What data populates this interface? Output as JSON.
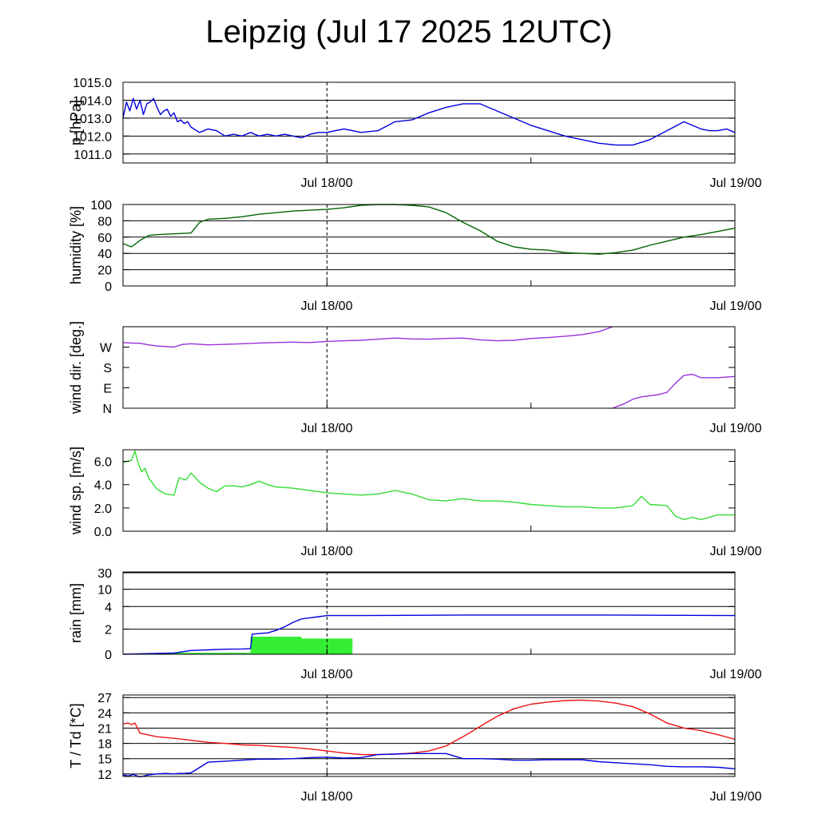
{
  "title": "Leipzig (Jul 17 2025 12UTC)",
  "x_ticks": [
    "Jul 18/00",
    "Jul 19/00"
  ],
  "chart_data": [
    {
      "type": "line",
      "ylabel": "p [hPa]",
      "ylim": [
        1010.5,
        1015.0
      ],
      "grid": true,
      "yticks": [
        1011.0,
        1012.0,
        1013.0,
        1014.0,
        1015.0
      ],
      "ytick_labels": [
        "1011.0",
        "1012.0",
        "1013.0",
        "1014.0",
        "1015.0"
      ],
      "xlim": [
        0,
        36
      ],
      "series": [
        {
          "color": "#0000dd",
          "x": [
            0,
            0.2,
            0.4,
            0.6,
            0.8,
            1.0,
            1.2,
            1.4,
            1.6,
            1.8,
            2.0,
            2.2,
            2.4,
            2.6,
            2.8,
            3.0,
            3.2,
            3.4,
            3.6,
            3.8,
            4.0,
            4.5,
            5.0,
            5.5,
            6.0,
            6.5,
            7.0,
            7.5,
            8.0,
            8.5,
            9.0,
            9.5,
            10.0,
            10.5,
            11.0,
            11.5,
            12.0,
            12.5,
            13.0,
            13.5,
            14.0,
            15.0,
            16.0,
            17.0,
            18.0,
            19.0,
            20.0,
            21.0,
            22.0,
            23.0,
            24.0,
            25.0,
            26.0,
            27.0,
            28.0,
            29.0,
            30.0,
            31.0,
            32.0,
            33.0,
            34.0,
            34.5,
            35.0,
            35.5,
            36.0
          ],
          "y": [
            1013.0,
            1013.9,
            1013.4,
            1014.1,
            1013.5,
            1014.0,
            1013.2,
            1013.8,
            1013.9,
            1014.1,
            1013.6,
            1013.2,
            1013.4,
            1013.5,
            1013.1,
            1013.3,
            1012.8,
            1012.9,
            1012.7,
            1012.8,
            1012.5,
            1012.2,
            1012.4,
            1012.3,
            1012.0,
            1012.1,
            1012.0,
            1012.2,
            1012.0,
            1012.1,
            1012.0,
            1012.1,
            1012.0,
            1011.9,
            1012.1,
            1012.2,
            1012.2,
            1012.3,
            1012.4,
            1012.3,
            1012.2,
            1012.3,
            1012.8,
            1012.9,
            1013.3,
            1013.6,
            1013.8,
            1013.8,
            1013.4,
            1013.0,
            1012.6,
            1012.3,
            1012.0,
            1011.8,
            1011.6,
            1011.5,
            1011.5,
            1011.8,
            1012.3,
            1012.8,
            1012.4,
            1012.3,
            1012.3,
            1012.4,
            1012.2
          ]
        }
      ]
    },
    {
      "type": "line",
      "ylabel": "humidity [%]",
      "ylim": [
        0,
        100
      ],
      "grid": true,
      "yticks": [
        0,
        20,
        40,
        60,
        80,
        100
      ],
      "ytick_labels": [
        "0",
        "20",
        "40",
        "60",
        "80",
        "100"
      ],
      "xlim": [
        0,
        36
      ],
      "series": [
        {
          "color": "#006400",
          "x": [
            0,
            0.5,
            1.0,
            1.5,
            2.0,
            3.0,
            4.0,
            4.5,
            5.0,
            6.0,
            7.0,
            8.0,
            9.0,
            10.0,
            11.0,
            12.0,
            13.0,
            14.0,
            15.0,
            16.0,
            17.0,
            18.0,
            19.0,
            20.0,
            21.0,
            22.0,
            23.0,
            24.0,
            25.0,
            26.0,
            27.0,
            28.0,
            29.0,
            30.0,
            31.0,
            32.0,
            33.0,
            34.0,
            35.0,
            36.0
          ],
          "y": [
            52,
            48,
            56,
            62,
            63,
            64,
            65,
            78,
            82,
            83,
            85,
            88,
            90,
            92,
            93,
            94,
            96,
            99,
            100,
            100,
            99,
            97,
            90,
            78,
            68,
            55,
            48,
            45,
            44,
            41,
            40,
            39,
            41,
            44,
            50,
            55,
            60,
            63,
            67,
            71
          ]
        }
      ]
    },
    {
      "type": "line",
      "ylabel": "wind dir. [deg.]",
      "ylim": [
        0,
        360
      ],
      "grid": false,
      "yticks": [
        0,
        90,
        180,
        270
      ],
      "ytick_labels": [
        "N",
        "E",
        "S",
        "W"
      ],
      "xlim": [
        0,
        36
      ],
      "series": [
        {
          "color": "#9b30d9",
          "x": [
            0,
            0.5,
            1.0,
            1.5,
            2.0,
            3.0,
            3.5,
            4.0,
            5.0,
            6.0,
            7.0,
            8.0,
            9.0,
            10.0,
            11.0,
            12.0,
            13.0,
            14.0,
            15.0,
            16.0,
            17.0,
            18.0,
            19.0,
            20.0,
            21.0,
            22.0,
            23.0,
            24.0,
            25.0,
            26.0,
            27.0,
            28.0,
            28.8
          ],
          "y": [
            290,
            288,
            287,
            280,
            275,
            270,
            282,
            285,
            280,
            282,
            285,
            288,
            290,
            292,
            290,
            295,
            298,
            300,
            305,
            310,
            306,
            305,
            308,
            310,
            302,
            298,
            300,
            308,
            312,
            318,
            325,
            338,
            360
          ]
        },
        {
          "color": "#9b30d9",
          "x": [
            28.8,
            29.5,
            30.0,
            30.5,
            31.0,
            31.5,
            32.0,
            32.5,
            33.0,
            33.5,
            34.0,
            35.0,
            36.0
          ],
          "y": [
            0,
            20,
            40,
            50,
            55,
            60,
            70,
            110,
            145,
            150,
            135,
            135,
            140
          ]
        }
      ]
    },
    {
      "type": "line",
      "ylabel": "wind sp. [m/s]",
      "ylim": [
        0,
        7
      ],
      "grid": false,
      "yticks": [
        0,
        2,
        4,
        6
      ],
      "ytick_labels": [
        "0.0",
        "2.0",
        "4.0",
        "6.0"
      ],
      "xlim": [
        0,
        36
      ],
      "series": [
        {
          "color": "#33dd33",
          "x": [
            0,
            0.5,
            0.7,
            0.9,
            1.1,
            1.3,
            1.5,
            1.7,
            2.0,
            2.5,
            3.0,
            3.3,
            3.7,
            4.0,
            4.5,
            5.0,
            5.5,
            6.0,
            6.5,
            7.0,
            7.5,
            8.0,
            8.5,
            9.0,
            10.0,
            11.0,
            12.0,
            13.0,
            14.0,
            15.0,
            16.0,
            17.0,
            18.0,
            19.0,
            20.0,
            21.0,
            22.0,
            23.0,
            24.0,
            25.0,
            26.0,
            27.0,
            28.0,
            29.0,
            30.0,
            30.5,
            31.0,
            32.0,
            32.5,
            33.0,
            33.5,
            34.0,
            35.0,
            36.0
          ],
          "y": [
            5.9,
            6.1,
            6.9,
            5.8,
            5.1,
            5.4,
            4.6,
            4.2,
            3.6,
            3.2,
            3.1,
            4.6,
            4.4,
            5.0,
            4.2,
            3.7,
            3.4,
            3.9,
            3.9,
            3.8,
            4.0,
            4.3,
            4.0,
            3.8,
            3.7,
            3.5,
            3.3,
            3.2,
            3.1,
            3.2,
            3.5,
            3.2,
            2.7,
            2.6,
            2.8,
            2.6,
            2.6,
            2.5,
            2.3,
            2.2,
            2.1,
            2.1,
            2.0,
            2.0,
            2.2,
            3.0,
            2.3,
            2.2,
            1.3,
            1.0,
            1.2,
            1.0,
            1.4,
            1.4
          ]
        }
      ]
    },
    {
      "type": "bar+line",
      "ylabel": "rain [mm]",
      "ylim": [
        0,
        30
      ],
      "scale": "nonlinear",
      "grid": true,
      "yticks": [
        0,
        2,
        4,
        10,
        30
      ],
      "ytick_labels": [
        "0",
        "2",
        "4",
        "10",
        "30"
      ],
      "xlim": [
        0,
        36
      ],
      "bars": {
        "color": "#33ee33",
        "segments": [
          {
            "x0": 1.5,
            "x1": 3.0,
            "value": 0.08
          },
          {
            "x0": 3.0,
            "x1": 7.5,
            "value": 0.12
          },
          {
            "x0": 7.5,
            "x1": 10.5,
            "value": 1.4
          },
          {
            "x0": 10.5,
            "x1": 13.5,
            "value": 1.25
          }
        ]
      },
      "series": [
        {
          "color": "#0000dd",
          "x": [
            0,
            1.5,
            3.0,
            3.5,
            4.0,
            5.0,
            6.0,
            7.0,
            7.5,
            7.6,
            8.0,
            8.5,
            9.0,
            9.5,
            10.0,
            10.5,
            11.0,
            11.5,
            12.0,
            14.0,
            20.0,
            28.0,
            36.0
          ],
          "y": [
            0,
            0.05,
            0.1,
            0.2,
            0.3,
            0.35,
            0.4,
            0.42,
            0.45,
            1.6,
            1.65,
            1.7,
            1.9,
            2.2,
            2.6,
            2.9,
            3.0,
            3.1,
            3.2,
            3.2,
            3.25,
            3.25,
            3.2
          ]
        }
      ]
    },
    {
      "type": "line",
      "ylabel": "T / Td [*C]",
      "ylim": [
        11.5,
        27.5
      ],
      "grid": true,
      "yticks": [
        12,
        15,
        18,
        21,
        24,
        27
      ],
      "ytick_labels": [
        "12",
        "15",
        "18",
        "21",
        "24",
        "27"
      ],
      "xlim": [
        0,
        36
      ],
      "series": [
        {
          "color": "#ee1111",
          "x": [
            0,
            0.3,
            0.5,
            0.7,
            1.0,
            2.0,
            3.0,
            4.0,
            5.0,
            6.0,
            7.0,
            8.0,
            9.0,
            10.0,
            11.0,
            12.0,
            13.0,
            14.0,
            15.0,
            16.0,
            17.0,
            18.0,
            19.0,
            20.0,
            21.0,
            22.0,
            23.0,
            24.0,
            25.0,
            26.0,
            27.0,
            28.0,
            29.0,
            30.0,
            31.0,
            32.0,
            33.0,
            34.0,
            35.0,
            36.0
          ],
          "y": [
            21.8,
            22.0,
            21.7,
            22.0,
            20.0,
            19.3,
            19.0,
            18.6,
            18.2,
            18.0,
            17.7,
            17.6,
            17.4,
            17.2,
            16.9,
            16.5,
            16.1,
            15.8,
            15.8,
            15.9,
            16.1,
            16.5,
            17.5,
            19.3,
            21.3,
            23.3,
            24.8,
            25.7,
            26.1,
            26.4,
            26.5,
            26.3,
            25.9,
            25.2,
            23.8,
            22.0,
            21.0,
            20.5,
            19.7,
            18.8
          ]
        },
        {
          "color": "#0000dd",
          "x": [
            0,
            0.3,
            0.6,
            1.0,
            1.5,
            2.0,
            2.5,
            3.0,
            3.3,
            3.6,
            4.0,
            5.0,
            6.0,
            7.0,
            8.0,
            9.0,
            10.0,
            11.0,
            12.0,
            13.0,
            14.0,
            15.0,
            16.0,
            17.0,
            18.0,
            19.0,
            20.0,
            21.0,
            22.0,
            23.0,
            24.0,
            25.0,
            26.0,
            27.0,
            28.0,
            29.0,
            30.0,
            31.0,
            32.0,
            33.0,
            34.0,
            35.0,
            36.0
          ],
          "y": [
            11.8,
            11.6,
            11.9,
            11.4,
            11.8,
            12.0,
            12.1,
            12.0,
            12.1,
            12.1,
            12.2,
            14.3,
            14.5,
            14.7,
            14.9,
            14.9,
            15.0,
            15.2,
            15.3,
            15.1,
            15.2,
            15.8,
            15.9,
            16.0,
            16.0,
            16.0,
            15.0,
            15.0,
            14.9,
            14.7,
            14.7,
            14.8,
            14.8,
            14.8,
            14.4,
            14.2,
            14.0,
            13.8,
            13.5,
            13.4,
            13.4,
            13.3,
            13.0
          ]
        }
      ]
    }
  ]
}
